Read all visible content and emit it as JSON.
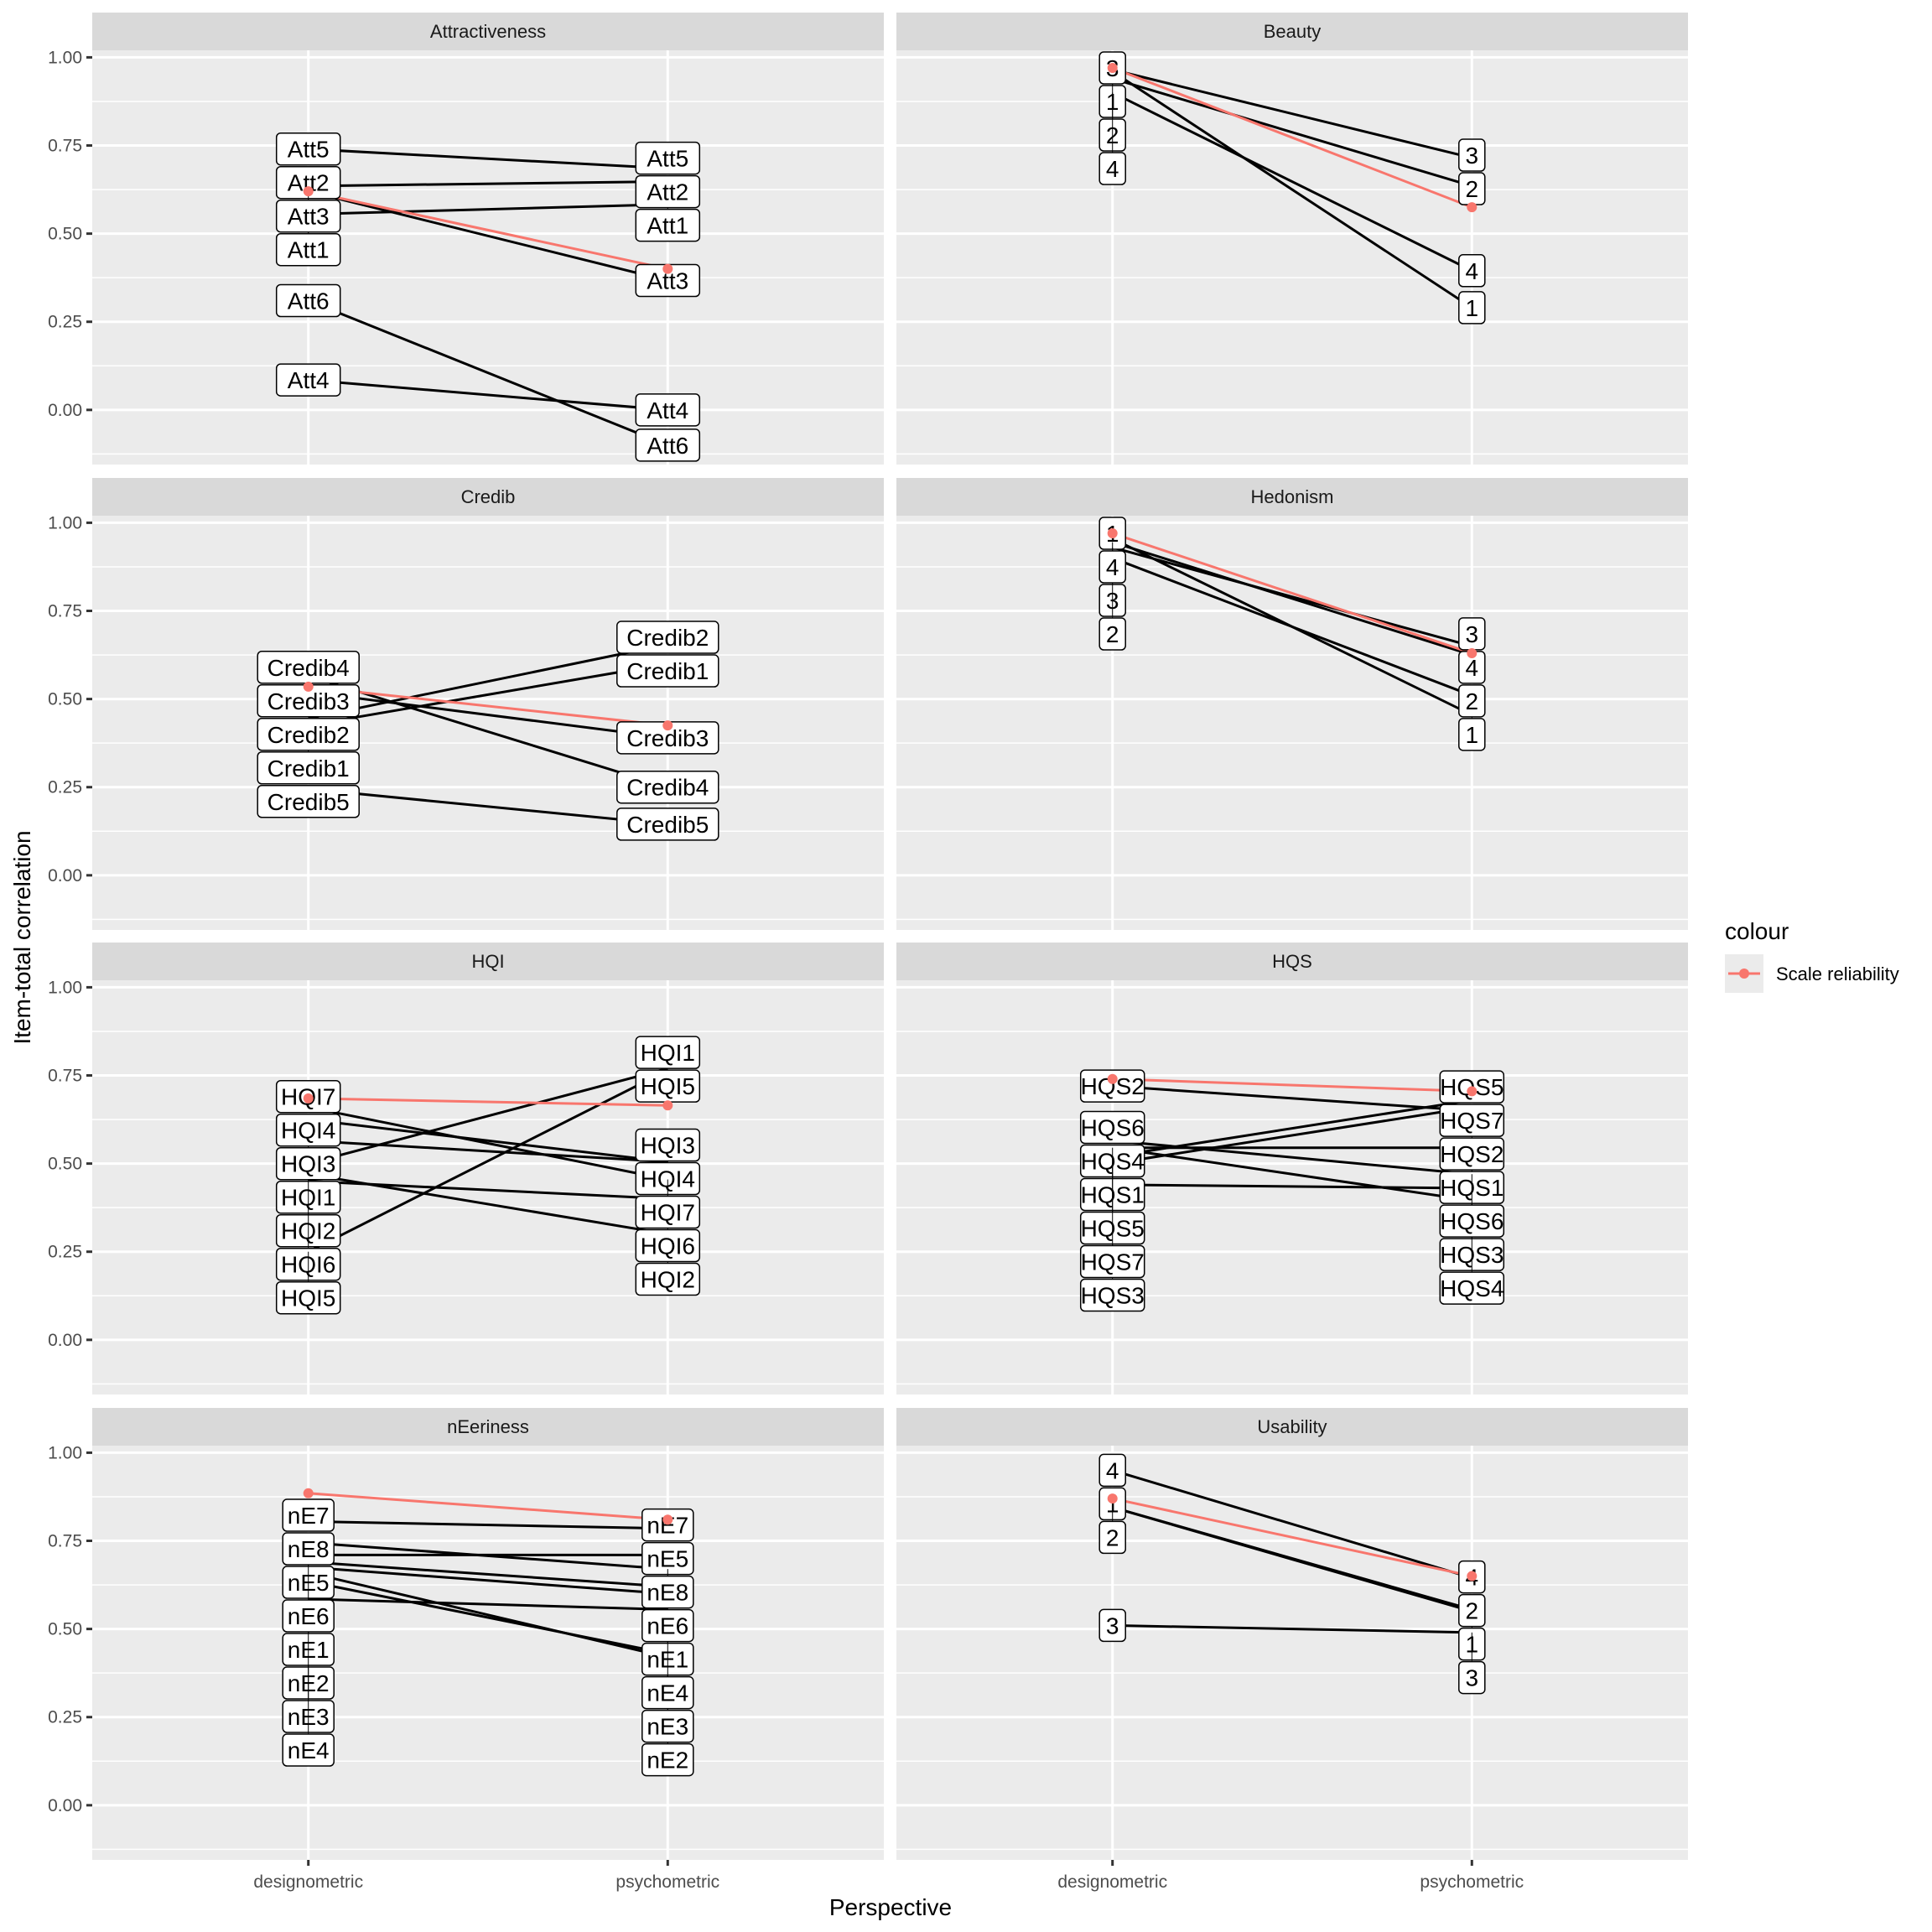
{
  "chart_data": {
    "type": "line",
    "layout": "facet_wrap",
    "xlabel": "Perspective",
    "ylabel": "Item-total correlation",
    "x_categories": [
      "designometric",
      "psychometric"
    ],
    "ylim": [
      -0.155,
      1.02
    ],
    "y_ticks": [
      0,
      0.25,
      0.5,
      0.75,
      1
    ],
    "y_tick_labels": [
      "0.00",
      "0.25",
      "0.50",
      "0.75",
      "1.00"
    ],
    "grid": true,
    "legend": {
      "title": "colour",
      "position": "right",
      "entries": [
        {
          "label": "Scale reliability",
          "color": "#F8766D"
        }
      ]
    },
    "colors": {
      "items": "#000000",
      "reliability": "#F8766D",
      "panel_bg": "#EBEBEB",
      "strip_bg": "#D9D9D9",
      "grid": "#FFFFFF"
    },
    "panels": [
      {
        "title": "Attractiveness",
        "reliability": [
          0.62,
          0.4
        ],
        "items": [
          {
            "label": "Att1",
            "values": [
              0.555,
              0.583
            ]
          },
          {
            "label": "Att2",
            "values": [
              0.635,
              0.648
            ]
          },
          {
            "label": "Att3",
            "values": [
              0.62,
              0.367
            ]
          },
          {
            "label": "Att4",
            "values": [
              0.085,
              0.0
            ]
          },
          {
            "label": "Att6",
            "values": [
              0.31,
              -0.1
            ]
          },
          {
            "label": "Att5",
            "values": [
              0.74,
              0.685
            ]
          }
        ]
      },
      {
        "title": "Beauty",
        "reliability": [
          0.97,
          0.575
        ],
        "items": [
          {
            "label": "1",
            "values": [
              0.96,
              0.29
            ]
          },
          {
            "label": "2",
            "values": [
              0.94,
              0.635
            ]
          },
          {
            "label": "3",
            "values": [
              0.965,
              0.715
            ]
          },
          {
            "label": "4",
            "values": [
              0.9,
              0.395
            ]
          }
        ]
      },
      {
        "title": "Credib",
        "reliability": [
          0.535,
          0.425
        ],
        "items": [
          {
            "label": "Credib1",
            "values": [
              0.425,
              0.6
            ]
          },
          {
            "label": "Credib2",
            "values": [
              0.445,
              0.655
            ]
          },
          {
            "label": "Credib3",
            "values": [
              0.52,
              0.39
            ]
          },
          {
            "label": "Credib4",
            "values": [
              0.565,
              0.25
            ]
          },
          {
            "label": "Credib5",
            "values": [
              0.245,
              0.145
            ]
          }
        ]
      },
      {
        "title": "Hedonism",
        "reliability": [
          0.97,
          0.63
        ],
        "items": [
          {
            "label": "1",
            "values": [
              0.955,
              0.455
            ]
          },
          {
            "label": "3",
            "values": [
              0.93,
              0.65
            ]
          },
          {
            "label": "2",
            "values": [
              0.9,
              0.51
            ]
          },
          {
            "label": "4",
            "values": [
              0.945,
              0.625
            ]
          }
        ]
      },
      {
        "title": "HQI",
        "reliability": [
          0.685,
          0.665
        ],
        "items": [
          {
            "label": "HQI2",
            "values": [
              0.47,
              0.3
            ]
          },
          {
            "label": "HQI1",
            "values": [
              0.5,
              0.77
            ]
          },
          {
            "label": "HQI3",
            "values": [
              0.565,
              0.505
            ]
          },
          {
            "label": "HQI4",
            "values": [
              0.625,
              0.505
            ]
          },
          {
            "label": "HQI6",
            "values": [
              0.45,
              0.4
            ]
          },
          {
            "label": "HQI7",
            "values": [
              0.66,
              0.455
            ]
          },
          {
            "label": "HQI5",
            "values": [
              0.25,
              0.765
            ]
          }
        ]
      },
      {
        "title": "HQS",
        "reliability": [
          0.74,
          0.705
        ],
        "items": [
          {
            "label": "HQS3",
            "values": [
              0.44,
              0.43
            ]
          },
          {
            "label": "HQS4",
            "values": [
              0.545,
              0.395
            ]
          },
          {
            "label": "HQS1",
            "values": [
              0.545,
              0.545
            ]
          },
          {
            "label": "HQS2",
            "values": [
              0.72,
              0.65
            ]
          },
          {
            "label": "HQS5",
            "values": [
              0.52,
              0.68
            ]
          },
          {
            "label": "HQS6",
            "values": [
              0.565,
              0.47
            ]
          },
          {
            "label": "HQS7",
            "values": [
              0.5,
              0.66
            ]
          }
        ]
      },
      {
        "title": "nEeriness",
        "reliability": [
          0.885,
          0.81
        ],
        "items": [
          {
            "label": "nE2",
            "values": [
              0.66,
              0.42
            ]
          },
          {
            "label": "nE3",
            "values": [
              0.635,
              0.43
            ]
          },
          {
            "label": "nE1",
            "values": [
              0.675,
              0.6
            ]
          },
          {
            "label": "nE5",
            "values": [
              0.71,
              0.71
            ]
          },
          {
            "label": "nE4",
            "values": [
              0.585,
              0.555
            ]
          },
          {
            "label": "nE6",
            "values": [
              0.69,
              0.62
            ]
          },
          {
            "label": "nE8",
            "values": [
              0.745,
              0.67
            ]
          },
          {
            "label": "nE7",
            "values": [
              0.805,
              0.785
            ]
          }
        ]
      },
      {
        "title": "Usability",
        "reliability": [
          0.87,
          0.65
        ],
        "items": [
          {
            "label": "1",
            "values": [
              0.845,
              0.55
            ]
          },
          {
            "label": "2",
            "values": [
              0.845,
              0.555
            ]
          },
          {
            "label": "3",
            "values": [
              0.51,
              0.49
            ]
          },
          {
            "label": "4",
            "values": [
              0.95,
              0.645
            ]
          }
        ]
      }
    ]
  }
}
